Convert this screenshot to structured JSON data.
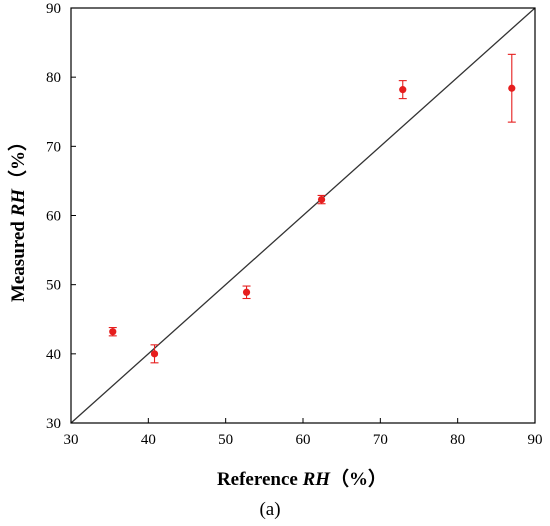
{
  "chart_data": {
    "type": "scatter",
    "xlabel": {
      "prefix": "Reference ",
      "italic": "RH",
      "suffix": "（%）"
    },
    "ylabel": {
      "prefix": "Measured ",
      "italic": "RH",
      "suffix": "（%）"
    },
    "panel_label": "(a)",
    "xlim": [
      30,
      90
    ],
    "ylim": [
      30,
      90
    ],
    "xticks": [
      30,
      40,
      50,
      60,
      70,
      80,
      90
    ],
    "yticks": [
      30,
      40,
      50,
      60,
      70,
      80,
      90
    ],
    "grid": false,
    "points": [
      {
        "x": 35.4,
        "y": 43.2,
        "err": 0.6
      },
      {
        "x": 40.8,
        "y": 40.0,
        "err": 1.3
      },
      {
        "x": 52.7,
        "y": 48.9,
        "err": 0.9
      },
      {
        "x": 62.4,
        "y": 62.3,
        "err": 0.6
      },
      {
        "x": 72.9,
        "y": 78.2,
        "err": 1.3
      },
      {
        "x": 87.0,
        "y": 78.4,
        "err": 4.9
      }
    ],
    "reference_line": {
      "from": [
        30,
        30
      ],
      "to": [
        90,
        90
      ]
    },
    "colors": {
      "points": "#e61e1e",
      "line": "#333333",
      "axes": "#000000"
    }
  }
}
